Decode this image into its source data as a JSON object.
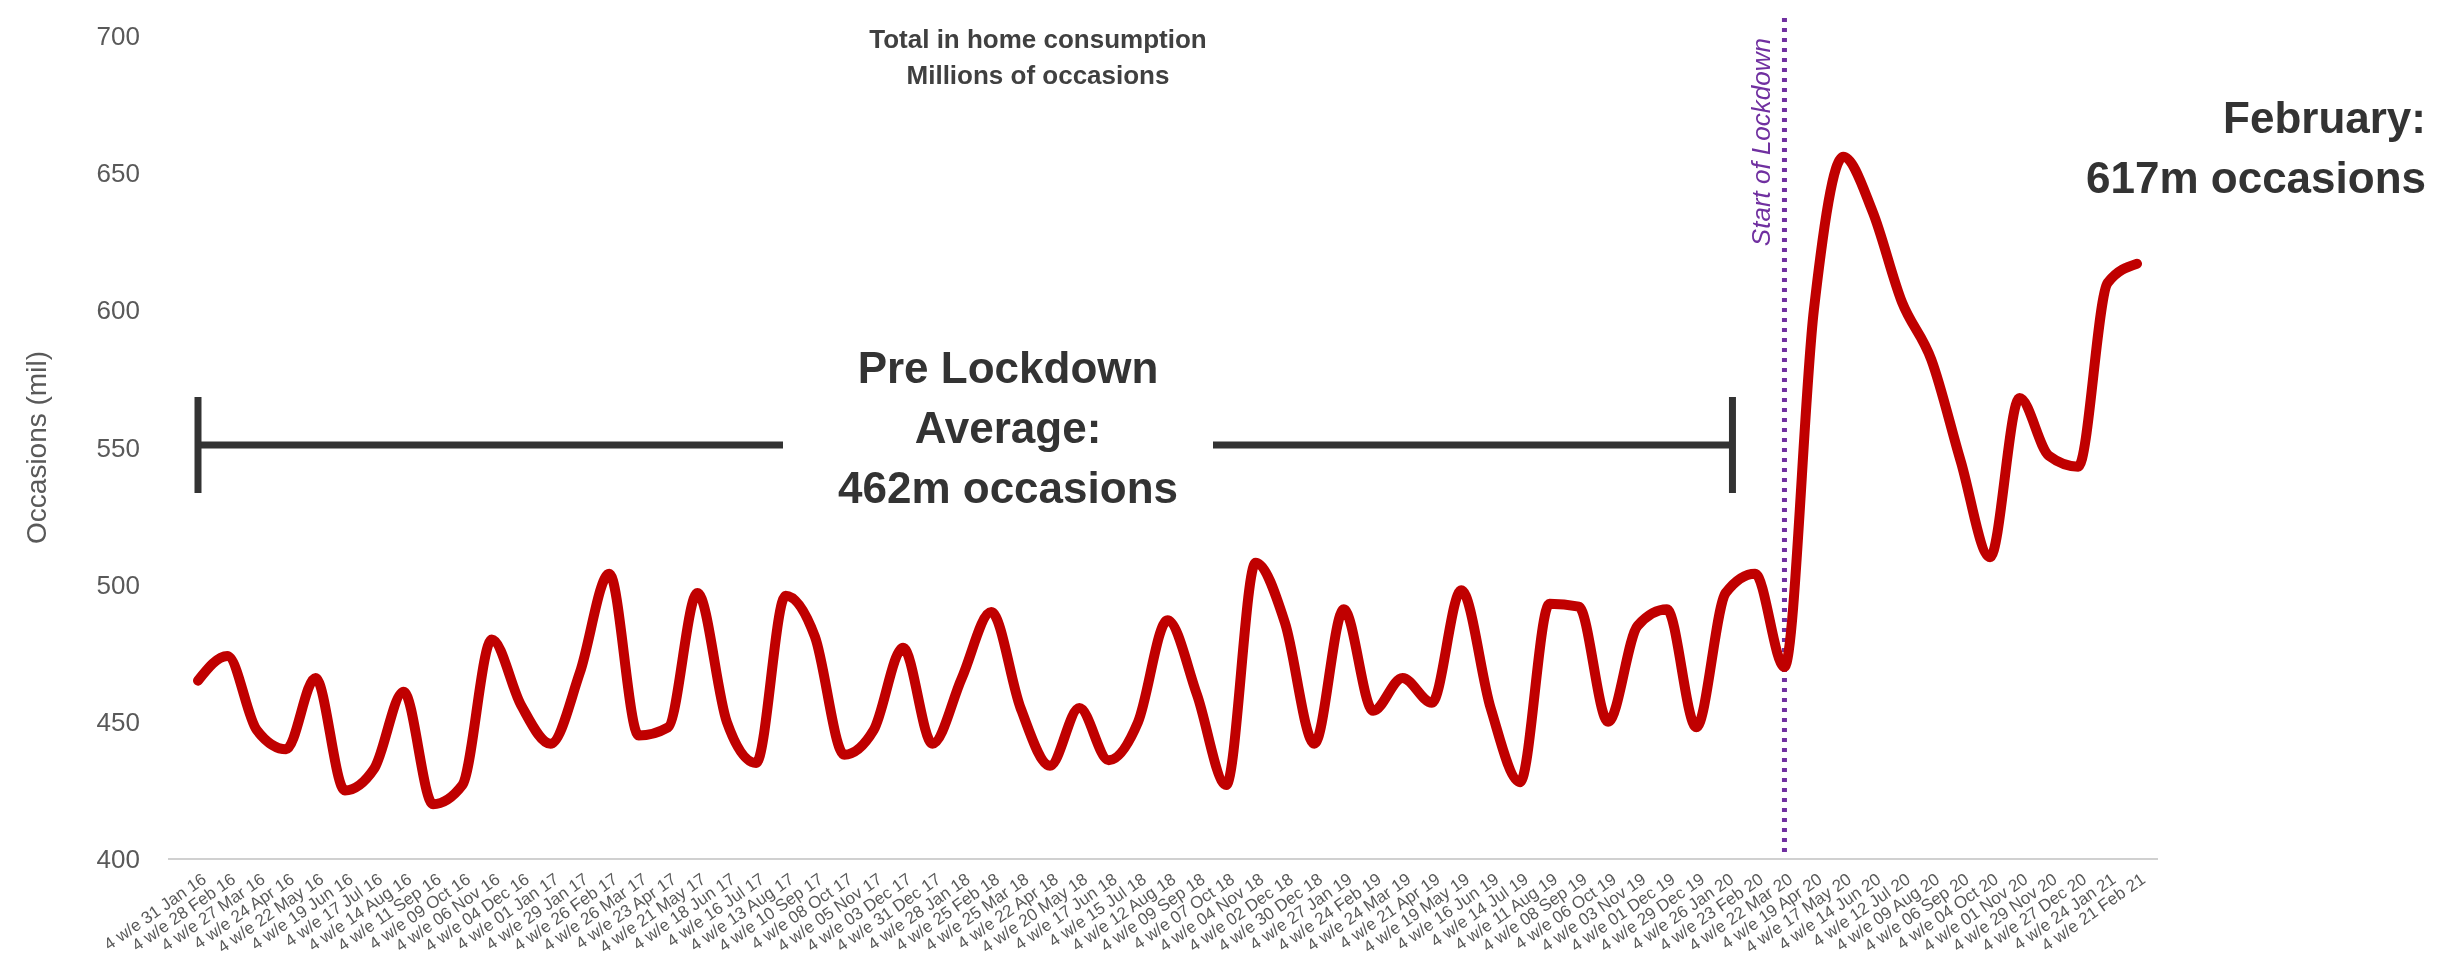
{
  "chart_data": {
    "type": "line",
    "title": "Total in home consumption",
    "subtitle": "Millions of occasions",
    "ylabel": "Occasions (mil)",
    "categories": [
      "4 w/e 31 Jan 16",
      "4 w/e 28 Feb 16",
      "4 w/e 27 Mar 16",
      "4 w/e 24 Apr 16",
      "4 w/e 22 May 16",
      "4 w/e 19 Jun 16",
      "4 w/e 17 Jul 16",
      "4 w/e 14 Aug 16",
      "4 w/e 11 Sep 16",
      "4 w/e 09 Oct 16",
      "4 w/e 06 Nov 16",
      "4 w/e 04 Dec 16",
      "4 w/e 01 Jan 17",
      "4 w/e 29 Jan 17",
      "4 w/e 26 Feb 17",
      "4 w/e 26 Mar 17",
      "4 w/e 23 Apr 17",
      "4 w/e 21 May 17",
      "4 w/e 18 Jun 17",
      "4 w/e 16 Jul 17",
      "4 w/e 13 Aug 17",
      "4 w/e 10 Sep 17",
      "4 w/e 08 Oct 17",
      "4 w/e 05 Nov 17",
      "4 w/e 03 Dec 17",
      "4 w/e 31 Dec 17",
      "4 w/e 28 Jan 18",
      "4 w/e 25 Feb 18",
      "4 w/e 25 Mar 18",
      "4 w/e 22 Apr 18",
      "4 w/e 20 May 18",
      "4 w/e 17 Jun 18",
      "4 w/e 15 Jul 18",
      "4 w/e 12 Aug 18",
      "4 w/e 09 Sep 18",
      "4 w/e 07 Oct 18",
      "4 w/e 04 Nov 18",
      "4 w/e 02 Dec 18",
      "4 w/e 30 Dec 18",
      "4 w/e 27 Jan 19",
      "4 w/e 24 Feb 19",
      "4 w/e 24 Mar 19",
      "4 w/e 21 Apr 19",
      "4 w/e 19 May 19",
      "4 w/e 16 Jun 19",
      "4 w/e 14 Jul 19",
      "4 w/e 11 Aug 19",
      "4 w/e 08 Sep 19",
      "4 w/e 06 Oct 19",
      "4 w/e 03 Nov 19",
      "4 w/e 01 Dec 19",
      "4 w/e 29 Dec 19",
      "4 w/e 26 Jan 20",
      "4 w/e 23 Feb 20",
      "4 w/e 22 Mar 20",
      "4 w/e 19 Apr 20",
      "4 w/e 17 May 20",
      "4 w/e 14 Jun 20",
      "4 w/e 12 Jul 20",
      "4 w/e 09 Aug 20",
      "4 w/e 06 Sep 20",
      "4 w/e 04 Oct 20",
      "4 w/e 01 Nov 20",
      "4 w/e 29 Nov 20",
      "4 w/e 27 Dec 20",
      "4 w/e 24 Jan 21",
      "4 w/e 21 Feb 21"
    ],
    "series": [
      {
        "color": "#c00000",
        "values": [
          465,
          474,
          447,
          440,
          466,
          425,
          433,
          461,
          420,
          427,
          480,
          456,
          442,
          468,
          504,
          445,
          448,
          497,
          450,
          435,
          496,
          481,
          438,
          447,
          477,
          442,
          466,
          490,
          455,
          434,
          455,
          436,
          450,
          487,
          460,
          427,
          508,
          486,
          442,
          491,
          454,
          466,
          457,
          498,
          455,
          428,
          493,
          492,
          450,
          485,
          491,
          448,
          497,
          504,
          470,
          600,
          656,
          636,
          603,
          582,
          545,
          510,
          568,
          547,
          543,
          610,
          617
        ]
      }
    ],
    "ylim": [
      400,
      700
    ],
    "yticks": [
      400,
      450,
      500,
      550,
      600,
      650,
      700
    ],
    "grid": false,
    "marker": "none",
    "line_style": "solid",
    "ref_lines": [
      {
        "axis": "x",
        "value": "4 w/e 22 Mar 20",
        "label": "Start of Lockdown",
        "color": "#7030a0",
        "line_style": "dotted"
      }
    ],
    "annotations": [
      "Pre Lockdown Average: 462m occasions",
      "February: 617m occasions"
    ]
  }
}
